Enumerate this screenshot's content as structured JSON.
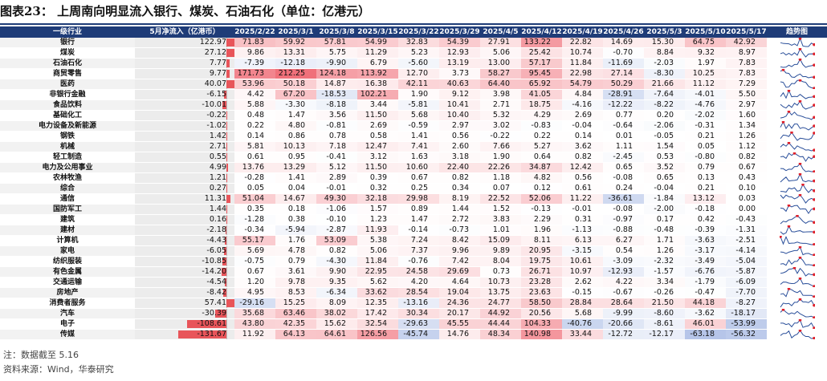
{
  "title": "图表23：  上周南向明显流入银行、煤炭、石油石化（单位：亿港元）",
  "notes": {
    "note": "注：数据截至 5.16",
    "source": "资料来源：Wind，华泰研究"
  },
  "colors": {
    "header": "#1f3c78",
    "bar": "#e8555a",
    "pos_max": "#f0707a",
    "neg_max": "#4a70c8",
    "trend_line": "#2a4f9a",
    "trend_dot": "#e0202a"
  },
  "chart_data": {
    "type": "table",
    "columns": [
      "一级行业",
      "5月净流入（亿港币）",
      "2025/2/22",
      "2025/3/1",
      "2025/3/8",
      "2025/3/15",
      "2025/3/22",
      "2025/3/29",
      "2025/4/5",
      "2025/4/12",
      "2025/4/19",
      "2025/4/26",
      "2025/5/3",
      "2025/5/10",
      "2025/5/17",
      "趋势图"
    ],
    "rows": [
      {
        "industry": "银行",
        "may_flow": 122.97,
        "weekly": [
          71.83,
          59.92,
          57.81,
          54.99,
          32.83,
          54.39,
          27.91,
          133.22,
          22.82,
          14.69,
          15.3,
          64.75,
          42.92
        ]
      },
      {
        "industry": "煤炭",
        "may_flow": 27.12,
        "weekly": [
          9.86,
          13.31,
          5.75,
          11.29,
          5.23,
          12.93,
          5.06,
          25.42,
          10.74,
          -0.7,
          8.84,
          9.32,
          8.97
        ]
      },
      {
        "industry": "石油石化",
        "may_flow": 7.77,
        "weekly": [
          -7.39,
          -12.18,
          -9.9,
          6.79,
          -5.6,
          13.19,
          13.0,
          57.17,
          11.84,
          -11.69,
          -2.03,
          1.97,
          7.83
        ]
      },
      {
        "industry": "商贸零售",
        "may_flow": 9.77,
        "weekly": [
          171.73,
          212.25,
          124.18,
          113.92,
          12.7,
          3.73,
          58.27,
          95.45,
          22.98,
          27.14,
          -8.3,
          10.25,
          7.83
        ]
      },
      {
        "industry": "医药",
        "may_flow": 40.07,
        "weekly": [
          53.96,
          50.18,
          14.87,
          16.38,
          42.11,
          40.63,
          64.4,
          65.92,
          54.79,
          50.29,
          21.66,
          11.12,
          7.29
        ]
      },
      {
        "industry": "非银行金融",
        "may_flow": -6.15,
        "weekly": [
          4.42,
          67.2,
          -18.53,
          102.21,
          1.9,
          9.12,
          3.98,
          41.05,
          4.84,
          -28.91,
          -7.64,
          -4.01,
          5.5
        ]
      },
      {
        "industry": "食品饮料",
        "may_flow": -10.01,
        "weekly": [
          5.88,
          -3.3,
          -8.18,
          3.44,
          -5.81,
          10.41,
          2.71,
          18.75,
          -4.16,
          -12.22,
          -8.22,
          -4.76,
          2.97
        ]
      },
      {
        "industry": "基础化工",
        "may_flow": -0.22,
        "weekly": [
          0.48,
          1.47,
          3.56,
          11.5,
          5.68,
          10.4,
          5.32,
          4.29,
          2.69,
          0.77,
          0.2,
          -2.02,
          1.6
        ]
      },
      {
        "industry": "电力设备及新能源",
        "may_flow": -1.02,
        "weekly": [
          0.22,
          4.8,
          -0.81,
          2.69,
          -0.59,
          2.97,
          3.02,
          -0.83,
          -0.04,
          -0.64,
          -2.06,
          -0.31,
          1.34
        ]
      },
      {
        "industry": "钢铁",
        "may_flow": 1.42,
        "weekly": [
          0.14,
          0.86,
          0.78,
          0.58,
          1.41,
          0.56,
          -0.22,
          0.22,
          0.14,
          0.01,
          -0.05,
          0.21,
          1.26
        ]
      },
      {
        "industry": "机械",
        "may_flow": 2.71,
        "weekly": [
          5.81,
          10.13,
          7.18,
          12.47,
          7.41,
          2.6,
          7.66,
          5.27,
          3.62,
          1.11,
          1.54,
          0.05,
          1.12
        ]
      },
      {
        "industry": "轻工制造",
        "may_flow": 0.55,
        "weekly": [
          0.61,
          0.95,
          -0.41,
          3.12,
          1.63,
          3.18,
          1.9,
          0.64,
          0.82,
          -2.45,
          0.53,
          -0.8,
          0.82
        ]
      },
      {
        "industry": "电力及公用事业",
        "may_flow": 4.99,
        "weekly": [
          13.76,
          13.29,
          5.12,
          11.5,
          10.6,
          22.4,
          22.26,
          34.87,
          12.42,
          0.65,
          3.52,
          0.79,
          0.67
        ]
      },
      {
        "industry": "农林牧渔",
        "may_flow": 1.21,
        "weekly": [
          -0.28,
          1.41,
          2.89,
          0.39,
          0.67,
          0.82,
          1.18,
          4.82,
          0.56,
          -0.08,
          0.65,
          0.13,
          0.43
        ]
      },
      {
        "industry": "综合",
        "may_flow": 0.27,
        "weekly": [
          0.05,
          0.04,
          -0.01,
          0.32,
          0.25,
          0.34,
          0.07,
          0.12,
          0.61,
          0.24,
          -0.04,
          0.21,
          0.1
        ]
      },
      {
        "industry": "通信",
        "may_flow": 11.31,
        "weekly": [
          51.04,
          14.67,
          49.3,
          32.18,
          29.98,
          8.19,
          22.52,
          52.06,
          11.22,
          -36.61,
          -1.84,
          13.12,
          0.03
        ]
      },
      {
        "industry": "国防军工",
        "may_flow": 1.44,
        "weekly": [
          0.35,
          0.18,
          -1.06,
          1.57,
          0.89,
          1.44,
          1.52,
          -0.13,
          -0.01,
          -0.08,
          -2.0,
          -0.18,
          0.0
        ]
      },
      {
        "industry": "建筑",
        "may_flow": 0.16,
        "weekly": [
          -1.28,
          0.38,
          -0.1,
          1.23,
          1.47,
          2.72,
          3.83,
          2.29,
          0.31,
          -0.97,
          0.17,
          0.42,
          -0.43
        ]
      },
      {
        "industry": "建材",
        "may_flow": -2.18,
        "weekly": [
          -0.34,
          -5.94,
          -2.87,
          11.93,
          -0.14,
          -0.73,
          1.01,
          1.96,
          -1.13,
          -0.88,
          -0.48,
          -0.39,
          -1.31
        ]
      },
      {
        "industry": "计算机",
        "may_flow": -4.43,
        "weekly": [
          55.17,
          1.76,
          53.09,
          5.38,
          7.24,
          8.42,
          15.09,
          8.11,
          6.13,
          6.27,
          1.71,
          -3.63,
          -2.51
        ]
      },
      {
        "industry": "家电",
        "may_flow": -6.05,
        "weekly": [
          5.69,
          4.78,
          0.82,
          5.06,
          7.37,
          9.96,
          9.89,
          20.95,
          -3.15,
          0.54,
          1.26,
          -3.17,
          -4.14
        ]
      },
      {
        "industry": "纺织服装",
        "may_flow": -10.85,
        "weekly": [
          -0.75,
          0.79,
          -4.3,
          11.84,
          -0.76,
          7.42,
          8.04,
          19.75,
          10.61,
          -3.09,
          -2.32,
          -3.49,
          -5.04
        ]
      },
      {
        "industry": "有色金属",
        "may_flow": -14.2,
        "weekly": [
          0.67,
          3.61,
          9.9,
          22.95,
          24.58,
          29.69,
          0.73,
          26.71,
          10.97,
          -12.93,
          -1.57,
          -6.76,
          -5.87
        ]
      },
      {
        "industry": "交通运输",
        "may_flow": -4.54,
        "weekly": [
          1.2,
          9.78,
          9.35,
          5.62,
          4.2,
          4.64,
          10.73,
          23.28,
          2.62,
          4.22,
          3.34,
          -1.79,
          -6.09
        ]
      },
      {
        "industry": "房地产",
        "may_flow": -8.42,
        "weekly": [
          4.95,
          8.53,
          -6.34,
          33.62,
          28.54,
          19.04,
          13.75,
          23.63,
          -0.15,
          -0.67,
          -0.26,
          -0.47,
          -7.7
        ]
      },
      {
        "industry": "消费者服务",
        "may_flow": 57.41,
        "weekly": [
          -29.16,
          15.25,
          8.09,
          12.35,
          -13.16,
          24.36,
          24.77,
          58.5,
          28.84,
          28.64,
          21.5,
          44.18,
          -8.27
        ]
      },
      {
        "industry": "汽车",
        "may_flow": -30.39,
        "weekly": [
          35.68,
          63.46,
          38.02,
          17.42,
          30.34,
          20.17,
          44.92,
          20.56,
          5.68,
          -9.99,
          -8.6,
          -3.62,
          -18.17
        ]
      },
      {
        "industry": "电子",
        "may_flow": -108.61,
        "weekly": [
          43.8,
          42.35,
          15.62,
          32.54,
          -29.63,
          45.55,
          44.44,
          104.33,
          -40.76,
          -20.66,
          -8.61,
          46.01,
          -53.99
        ]
      },
      {
        "industry": "传媒",
        "may_flow": -131.67,
        "weekly": [
          11.92,
          64.13,
          64.61,
          126.56,
          -45.74,
          14.76,
          48.34,
          140.98,
          33.44,
          -12.72,
          -12.17,
          -63.18,
          -56.32
        ]
      }
    ]
  }
}
